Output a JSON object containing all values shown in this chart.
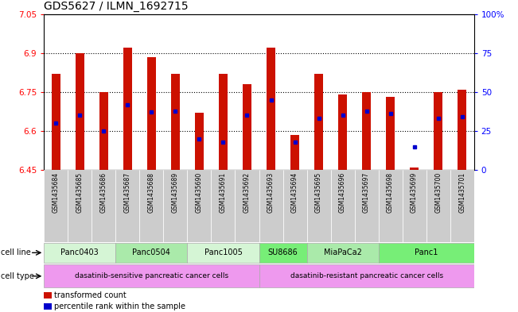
{
  "title": "GDS5627 / ILMN_1692715",
  "samples": [
    "GSM1435684",
    "GSM1435685",
    "GSM1435686",
    "GSM1435687",
    "GSM1435688",
    "GSM1435689",
    "GSM1435690",
    "GSM1435691",
    "GSM1435692",
    "GSM1435693",
    "GSM1435694",
    "GSM1435695",
    "GSM1435696",
    "GSM1435697",
    "GSM1435698",
    "GSM1435699",
    "GSM1435700",
    "GSM1435701"
  ],
  "transformed_counts": [
    6.82,
    6.9,
    6.75,
    6.92,
    6.885,
    6.82,
    6.67,
    6.82,
    6.78,
    6.92,
    6.585,
    6.82,
    6.74,
    6.75,
    6.73,
    6.46,
    6.75,
    6.76
  ],
  "percentile_ranks": [
    30,
    35,
    25,
    42,
    37,
    38,
    20,
    18,
    35,
    45,
    18,
    33,
    35,
    38,
    36,
    15,
    33,
    34
  ],
  "ylim_left": [
    6.45,
    7.05
  ],
  "ylim_right": [
    0,
    100
  ],
  "yticks_left": [
    6.45,
    6.6,
    6.75,
    6.9,
    7.05
  ],
  "yticks_right": [
    0,
    25,
    50,
    75,
    100
  ],
  "ytick_labels_right": [
    "0",
    "25",
    "50",
    "75",
    "100%"
  ],
  "bar_bottom": 6.45,
  "bar_color": "#cc1100",
  "dot_color": "#0000cc",
  "cell_lines": [
    {
      "label": "Panc0403",
      "start": 0,
      "end": 2,
      "color": "#d5f5d5"
    },
    {
      "label": "Panc0504",
      "start": 3,
      "end": 5,
      "color": "#aaeaaa"
    },
    {
      "label": "Panc1005",
      "start": 6,
      "end": 8,
      "color": "#d5f5d5"
    },
    {
      "label": "SU8686",
      "start": 9,
      "end": 10,
      "color": "#77ee77"
    },
    {
      "label": "MiaPaCa2",
      "start": 11,
      "end": 13,
      "color": "#aaeaaa"
    },
    {
      "label": "Panc1",
      "start": 14,
      "end": 17,
      "color": "#77ee77"
    }
  ],
  "cell_types": [
    {
      "label": "dasatinib-sensitive pancreatic cancer cells",
      "start": 0,
      "end": 8,
      "color": "#ee99ee"
    },
    {
      "label": "dasatinib-resistant pancreatic cancer cells",
      "start": 9,
      "end": 17,
      "color": "#ee99ee"
    }
  ],
  "background_color": "white",
  "title_fontsize": 10,
  "bar_width": 0.35,
  "dot_size": 3.0,
  "grid_yticks": [
    6.6,
    6.75,
    6.9
  ]
}
